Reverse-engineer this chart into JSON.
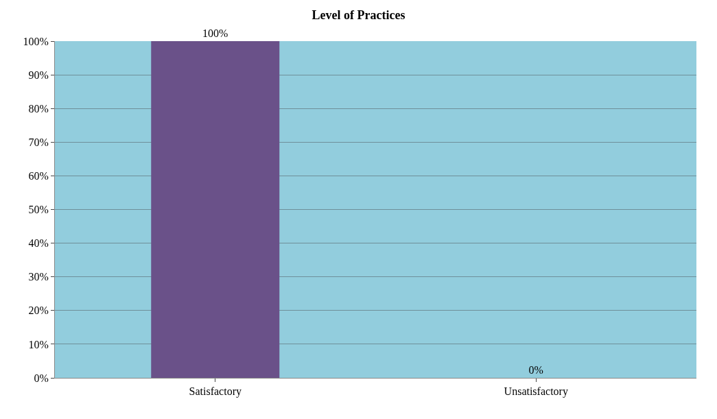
{
  "chart_data": {
    "type": "bar",
    "title": "Level of Practices",
    "categories": [
      "Satisfactory",
      "Unsatisfactory"
    ],
    "values": [
      100,
      0
    ],
    "colors": [
      "#6a5189",
      "#7b2a27"
    ],
    "value_labels": [
      "100%",
      "0%"
    ],
    "ylim": [
      0,
      100
    ],
    "yticks": [
      {
        "value": 0,
        "label": "0%"
      },
      {
        "value": 10,
        "label": "10%"
      },
      {
        "value": 20,
        "label": "20%"
      },
      {
        "value": 30,
        "label": "30%"
      },
      {
        "value": 40,
        "label": "40%"
      },
      {
        "value": 50,
        "label": "50%"
      },
      {
        "value": 60,
        "label": "60%"
      },
      {
        "value": 70,
        "label": "70%"
      },
      {
        "value": 80,
        "label": "80%"
      },
      {
        "value": 90,
        "label": "90%"
      },
      {
        "value": 100,
        "label": "100%"
      }
    ],
    "grid": "y"
  }
}
